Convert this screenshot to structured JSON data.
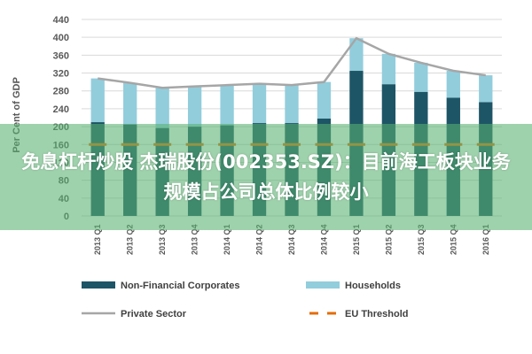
{
  "chart_data": {
    "type": "bar",
    "stacked": true,
    "ylabel": "Per Cent of GDP",
    "ylim": [
      0,
      440
    ],
    "yticks": [
      0,
      40,
      80,
      120,
      160,
      200,
      240,
      280,
      320,
      360,
      400,
      440
    ],
    "grid": true,
    "legend_position": "bottom",
    "categories": [
      "2013 Q1",
      "2013 Q2",
      "2013 Q3",
      "2013 Q4",
      "2014 Q1",
      "2014 Q2",
      "2014 Q3",
      "2014 Q4",
      "2015 Q1",
      "2015 Q2",
      "2015 Q3",
      "2015 Q4",
      "2016 Q1"
    ],
    "series": [
      {
        "name": "Non-Financial Corporates",
        "type": "bar",
        "color": "#1d5566",
        "values": [
          210,
          205,
          197,
          200,
          203,
          208,
          208,
          218,
          325,
          295,
          278,
          265,
          255
        ]
      },
      {
        "name": "Households",
        "type": "bar",
        "color": "#92cddc",
        "values": [
          98,
          93,
          90,
          90,
          90,
          88,
          85,
          82,
          73,
          68,
          65,
          60,
          60
        ]
      },
      {
        "name": "Private Sector",
        "type": "line",
        "color": "#a6a6a6",
        "values": [
          308,
          298,
          287,
          290,
          293,
          296,
          293,
          300,
          398,
          363,
          343,
          325,
          315
        ]
      },
      {
        "name": "EU Threshold",
        "type": "dashed-line",
        "color": "#e46c0a",
        "values": [
          160,
          160,
          160,
          160,
          160,
          160,
          160,
          160,
          160,
          160,
          160,
          160,
          160
        ]
      }
    ]
  },
  "overlay": {
    "text": "免息杠杆炒股 杰瑞股份(002353.SZ)：目前海工板块业务规模占公司总体比例较小"
  }
}
